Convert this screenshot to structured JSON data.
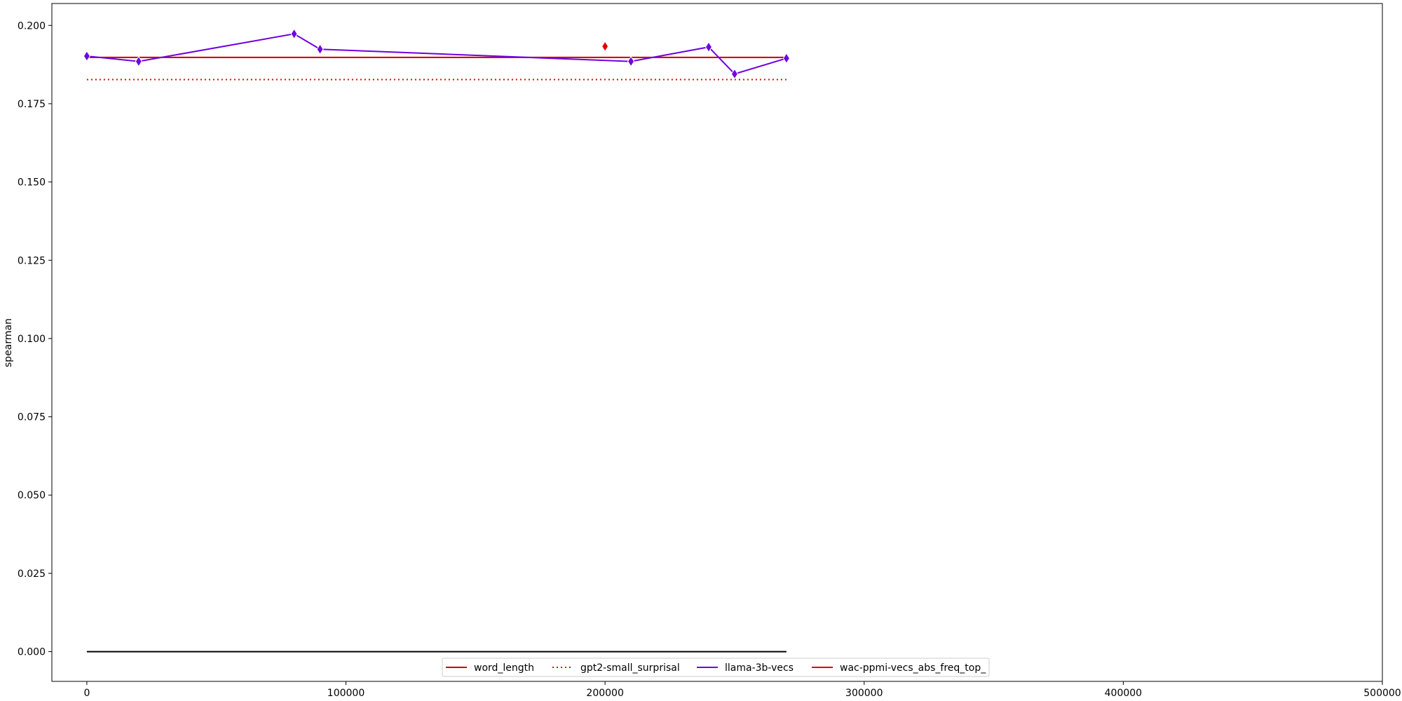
{
  "chart_data": {
    "type": "line",
    "title": "",
    "xlabel": "",
    "ylabel": "spearman",
    "xlim": [
      -13500,
      500000
    ],
    "ylim": [
      -0.0095,
      0.207
    ],
    "xticks": [
      0,
      100000,
      200000,
      300000,
      400000,
      500000
    ],
    "xtick_labels": [
      "0",
      "100000",
      "200000",
      "300000",
      "400000",
      "500000"
    ],
    "yticks": [
      0.0,
      0.025,
      0.05,
      0.075,
      0.1,
      0.125,
      0.15,
      0.175,
      0.2
    ],
    "ytick_labels": [
      "0.000",
      "0.025",
      "0.050",
      "0.075",
      "0.100",
      "0.125",
      "0.150",
      "0.175",
      "0.200"
    ],
    "grid": false,
    "legend_position": "bottom-center",
    "series": [
      {
        "name": "word_length",
        "kind": "hline",
        "y": 0.1898,
        "x_range": [
          0,
          270000
        ],
        "color": "#cc0000",
        "dash": "solid"
      },
      {
        "name": "gpt2-small_surprisal",
        "kind": "hline",
        "y": 0.1827,
        "x_range": [
          0,
          270000
        ],
        "color": "#e00000",
        "dash": "dotted"
      },
      {
        "name": "llama-3b-vecs",
        "kind": "line",
        "color": "#7000e0",
        "marker": "diamond",
        "x": [
          0,
          20000,
          80000,
          90000,
          210000,
          240000,
          250000,
          270000
        ],
        "y": [
          0.1902,
          0.1885,
          0.1973,
          0.1924,
          0.1885,
          0.1931,
          0.1845,
          0.1895
        ]
      },
      {
        "name": "wac-ppmi-vecs_abs_freq_top_",
        "kind": "scatter",
        "color": "#dd0000",
        "marker": "diamond",
        "x": [
          200000
        ],
        "y": [
          0.1933
        ]
      }
    ],
    "baseline": {
      "y": 0.0,
      "x_range": [
        0,
        270000
      ],
      "color": "#000000"
    }
  }
}
